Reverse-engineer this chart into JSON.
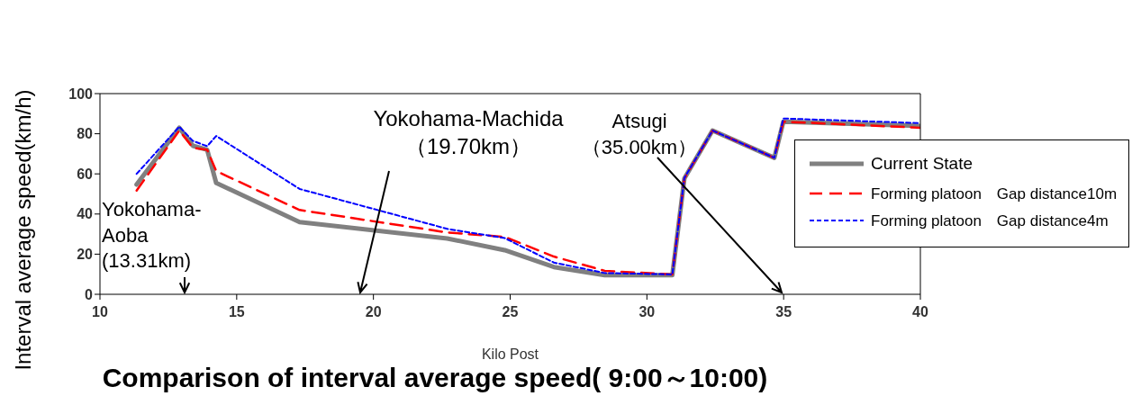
{
  "chart_data": {
    "type": "line",
    "title": "Comparison of interval average speed( 9:00～10:00)",
    "xlabel": "Kilo Post",
    "ylabel": "Interval average speed(km/h)",
    "x": [
      11.34,
      12.9,
      13.4,
      13.92,
      14.25,
      17.3,
      22.7,
      24.8,
      26.6,
      28.46,
      30.93,
      31.37,
      32.4,
      34.66,
      34.99,
      40
    ],
    "series": [
      {
        "name": "Current State",
        "color": "#808080",
        "line_style": "solid",
        "values": [
          54.7,
          83,
          74,
          72,
          55.5,
          36,
          27.8,
          22,
          13.6,
          9.5,
          9.5,
          57.7,
          81.6,
          68,
          86,
          83.9
        ]
      },
      {
        "name": "Forming platoon　Gap distance10m",
        "color": "#ff0000",
        "line_style": "dashed",
        "values": [
          51.7,
          81.6,
          73,
          72,
          61.4,
          42,
          30.8,
          28.6,
          18.8,
          11.7,
          9.9,
          57.7,
          81.6,
          68,
          86,
          83
        ]
      },
      {
        "name": "Forming platoon　Gap distance4m",
        "color": "#0000ff",
        "line_style": "dotted",
        "values": [
          60,
          83.5,
          76.4,
          73.8,
          78.9,
          52.5,
          32.6,
          28,
          15.8,
          10.6,
          9.9,
          58,
          81.6,
          68,
          87.6,
          85.3
        ]
      }
    ],
    "xlim": [
      10,
      40
    ],
    "xticks": [
      10,
      15,
      20,
      25,
      30,
      35,
      40
    ],
    "ylim": [
      0,
      100
    ],
    "yticks": [
      0,
      20,
      40,
      60,
      80,
      100
    ],
    "legend": "right",
    "annotations": [
      "Yokohama-\nAoba\n(13.31km)",
      "Yokohama-Machida\n（19.70km）",
      "Atsugi\n（35.00km）"
    ]
  }
}
